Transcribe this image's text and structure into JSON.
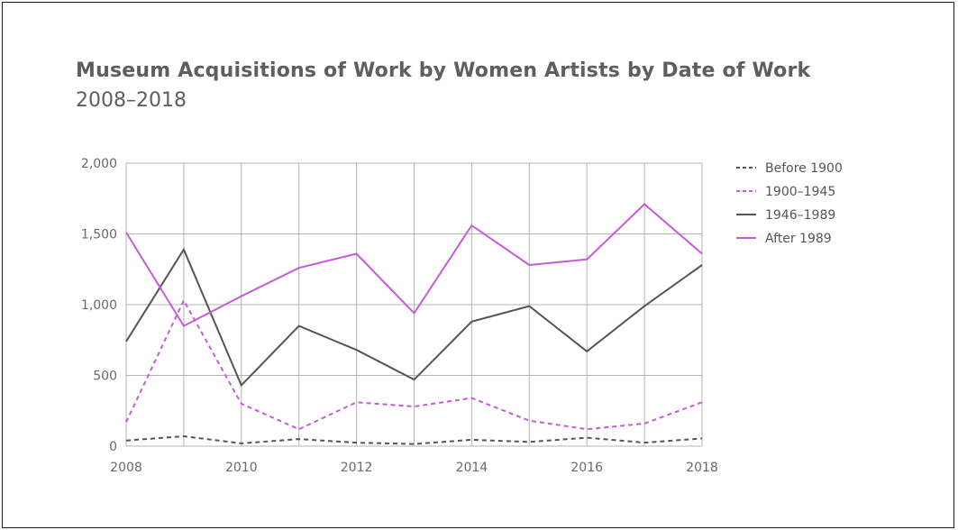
{
  "chart_data": {
    "type": "line",
    "title": "Museum Acquisitions of Work by Women Artists by Date of Work",
    "subtitle": "2008–2018",
    "x": [
      2008,
      2009,
      2010,
      2011,
      2012,
      2013,
      2014,
      2015,
      2016,
      2017,
      2018
    ],
    "xticks": [
      "2008",
      "2010",
      "2012",
      "2014",
      "2016",
      "2018"
    ],
    "yticks": [
      "0",
      "500",
      "1,000",
      "1,500",
      "2,000"
    ],
    "ylim": [
      0,
      2000
    ],
    "grid": true,
    "legend_position": "right",
    "series": [
      {
        "name": "Before 1900",
        "color": "#555555",
        "dash": "dashed",
        "values": [
          40,
          70,
          20,
          50,
          25,
          15,
          45,
          30,
          60,
          25,
          55
        ]
      },
      {
        "name": "1900–1945",
        "color": "#c65ad9",
        "dash": "dashed",
        "values": [
          170,
          1030,
          300,
          120,
          310,
          280,
          340,
          180,
          120,
          160,
          310
        ]
      },
      {
        "name": "1946–1989",
        "color": "#555555",
        "dash": "solid",
        "values": [
          740,
          1390,
          430,
          850,
          680,
          470,
          880,
          990,
          670,
          990,
          1280
        ]
      },
      {
        "name": "After 1989",
        "color": "#c65ad9",
        "dash": "solid",
        "values": [
          1510,
          850,
          1060,
          1260,
          1360,
          940,
          1560,
          1280,
          1320,
          1710,
          1360
        ]
      }
    ]
  }
}
